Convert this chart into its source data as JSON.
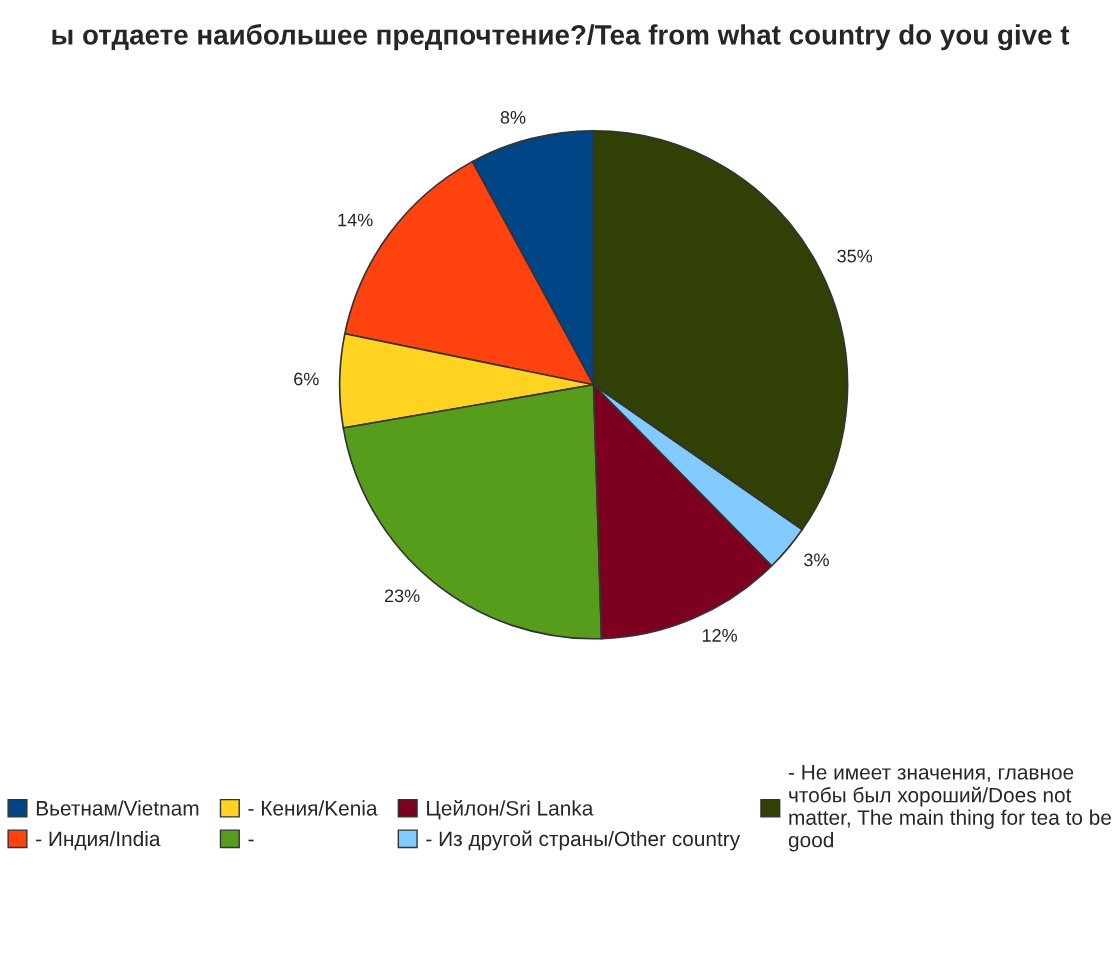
{
  "chart_data": {
    "type": "pie",
    "title": "ы отдаете наибольшее предпочтение?/Tea from what country do you give t",
    "categories": [
      "Вьетнам/Vietnam",
      "- Индия/India",
      "- Кения/Kenia",
      "-",
      "Цейлон/Sri Lanka",
      "- Из другой страны/Other country",
      "- Не имеет значения, главное\nчтобы был хороший/Does not\nmatter, The main thing for tea to be\ngood"
    ],
    "values": [
      8,
      14,
      6,
      23,
      12,
      3,
      35
    ],
    "colors": [
      "#004586",
      "#ff420e",
      "#ffd320",
      "#579d1c",
      "#7e0021",
      "#83caff",
      "#314004"
    ],
    "value_labels": [
      "8%",
      "14%",
      "6%",
      "23%",
      "12%",
      "3%",
      "35%"
    ],
    "legend": "bottom"
  }
}
